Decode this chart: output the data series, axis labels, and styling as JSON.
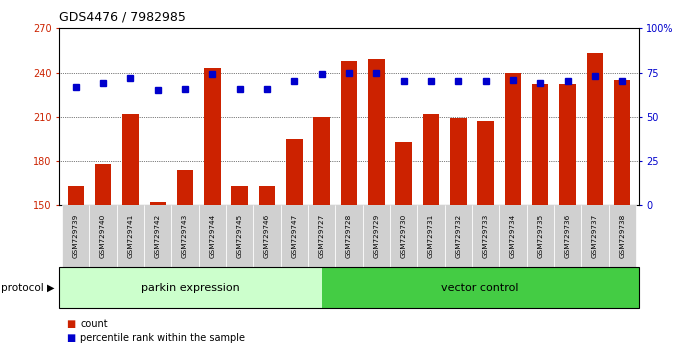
{
  "title": "GDS4476 / 7982985",
  "samples": [
    "GSM729739",
    "GSM729740",
    "GSM729741",
    "GSM729742",
    "GSM729743",
    "GSM729744",
    "GSM729745",
    "GSM729746",
    "GSM729747",
    "GSM729727",
    "GSM729728",
    "GSM729729",
    "GSM729730",
    "GSM729731",
    "GSM729732",
    "GSM729733",
    "GSM729734",
    "GSM729735",
    "GSM729736",
    "GSM729737",
    "GSM729738"
  ],
  "bar_values": [
    163,
    178,
    212,
    152,
    174,
    243,
    163,
    163,
    195,
    210,
    248,
    249,
    193,
    212,
    209,
    207,
    240,
    232,
    232,
    253,
    235
  ],
  "percentile_values": [
    67,
    69,
    72,
    65,
    66,
    74,
    66,
    66,
    70,
    74,
    75,
    75,
    70,
    70,
    70,
    70,
    71,
    69,
    70,
    73,
    70
  ],
  "bar_color": "#cc2200",
  "percentile_color": "#0000cc",
  "ylim_left": [
    150,
    270
  ],
  "ylim_right": [
    0,
    100
  ],
  "yticks_left": [
    150,
    180,
    210,
    240,
    270
  ],
  "yticks_right": [
    0,
    25,
    50,
    75,
    100
  ],
  "ytick_labels_right": [
    "0",
    "25",
    "50",
    "75",
    "100%"
  ],
  "group1_label": "parkin expression",
  "group2_label": "vector control",
  "group1_count": 9,
  "protocol_label": "protocol",
  "legend_count_label": "count",
  "legend_percentile_label": "percentile rank within the sample",
  "group1_color": "#ccffcc",
  "group2_color": "#44cc44",
  "bg_color": "#ffffff",
  "tick_label_color_left": "#cc2200",
  "tick_label_color_right": "#0000cc",
  "ticklabel_bg": "#d0d0d0"
}
